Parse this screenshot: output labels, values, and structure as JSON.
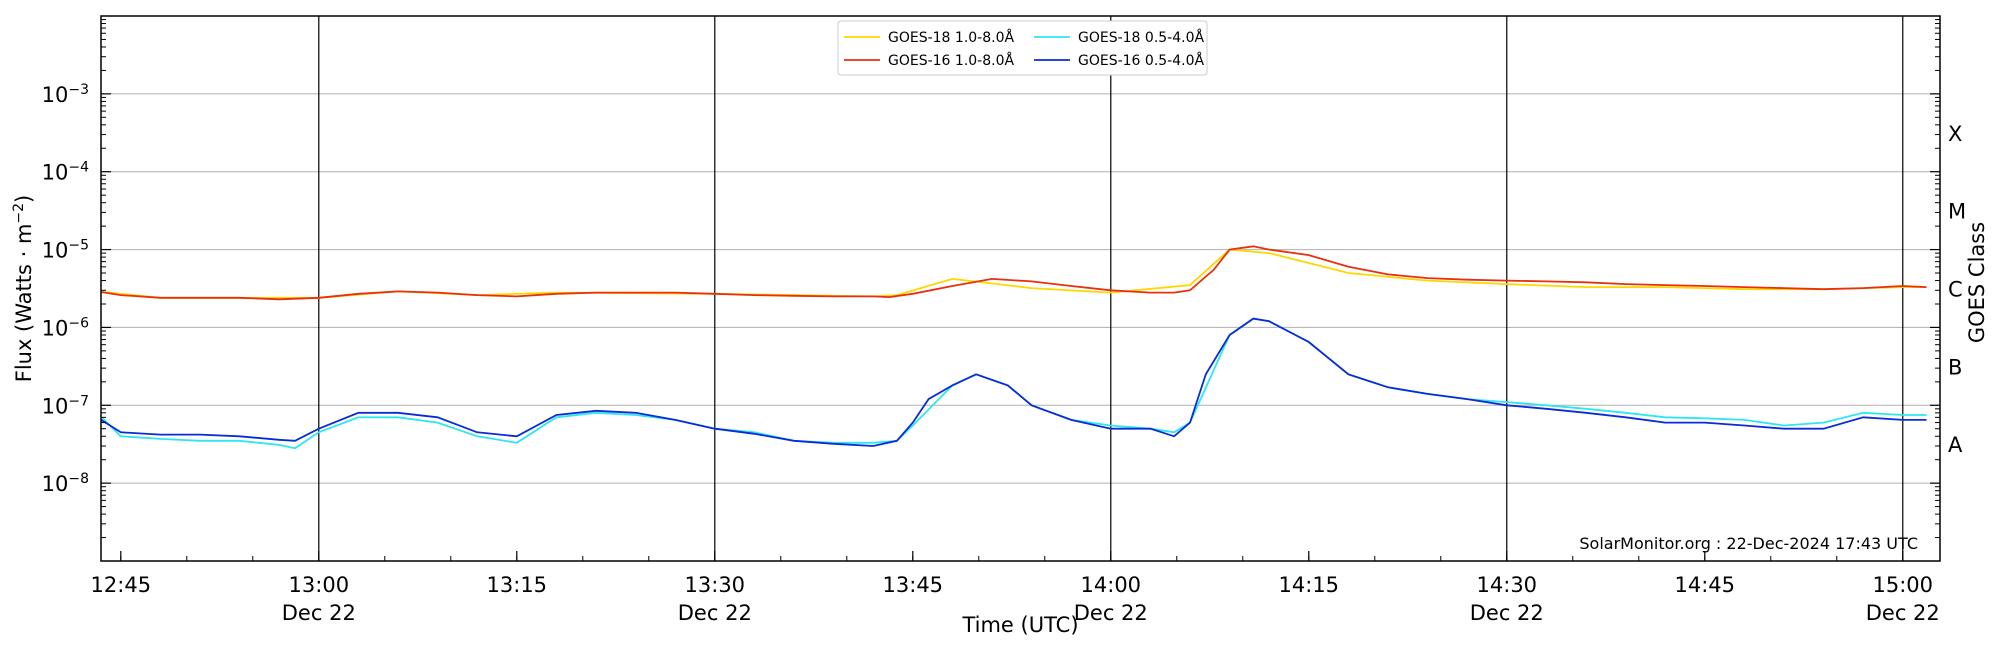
{
  "chart_data": {
    "type": "line",
    "xlabel": "Time (UTC)",
    "ylabel_main": "Flux (Watts · m",
    "ylabel_sup": "−2",
    "ylabel_close": ")",
    "right_axis_label": "GOES Class",
    "credit": "SolarMonitor.org : 22-Dec-2024 17:43 UTC",
    "x_range_minutes": [
      12.75,
      15.05
    ],
    "x_unit": "hours UTC on 22-Dec-2024",
    "ylim": [
      1e-09,
      0.01
    ],
    "y_scale": "log",
    "grid": "horizontal at decades, vertical lines at half hours",
    "legend_position": "top-center",
    "x_ticks": [
      {
        "value": 12.75,
        "line1": "12:45",
        "line2": ""
      },
      {
        "value": 13.0,
        "line1": "13:00",
        "line2": "Dec 22"
      },
      {
        "value": 13.25,
        "line1": "13:15",
        "line2": ""
      },
      {
        "value": 13.5,
        "line1": "13:30",
        "line2": "Dec 22"
      },
      {
        "value": 13.75,
        "line1": "13:45",
        "line2": ""
      },
      {
        "value": 14.0,
        "line1": "14:00",
        "line2": "Dec 22"
      },
      {
        "value": 14.25,
        "line1": "14:15",
        "line2": ""
      },
      {
        "value": 14.5,
        "line1": "14:30",
        "line2": "Dec 22"
      },
      {
        "value": 14.75,
        "line1": "14:45",
        "line2": ""
      },
      {
        "value": 15.0,
        "line1": "15:00",
        "line2": "Dec 22"
      }
    ],
    "vertical_lines": [
      13.0,
      13.5,
      14.0,
      14.5,
      15.0
    ],
    "y_ticks": [
      {
        "exp": -8,
        "base": "10",
        "sup": "−8"
      },
      {
        "exp": -7,
        "base": "10",
        "sup": "−7"
      },
      {
        "exp": -6,
        "base": "10",
        "sup": "−6"
      },
      {
        "exp": -5,
        "base": "10",
        "sup": "−5"
      },
      {
        "exp": -4,
        "base": "10",
        "sup": "−4"
      },
      {
        "exp": -3,
        "base": "10",
        "sup": "−3"
      }
    ],
    "goes_classes": [
      {
        "label": "A",
        "exp": -7.5
      },
      {
        "label": "B",
        "exp": -6.5
      },
      {
        "label": "C",
        "exp": -5.5
      },
      {
        "label": "M",
        "exp": -4.5
      },
      {
        "label": "X",
        "exp": -3.5
      }
    ],
    "series": [
      {
        "name": "GOES-18 1.0-8.0Å",
        "color": "#ffd700",
        "x": [
          12.72,
          12.8,
          13.0,
          13.1,
          13.2,
          13.3,
          13.5,
          13.7,
          13.73,
          13.8,
          13.9,
          14.0,
          14.1,
          14.15,
          14.2,
          14.3,
          14.4,
          14.5,
          14.6,
          14.7,
          14.8,
          14.9,
          15.0,
          15.03
        ],
        "values": [
          2.9e-06,
          2.4e-06,
          2.4e-06,
          2.9e-06,
          2.6e-06,
          2.8e-06,
          2.7e-06,
          2.5e-06,
          2.6e-06,
          4.2e-06,
          3.2e-06,
          2.8e-06,
          3.5e-06,
          1e-05,
          9e-06,
          5e-06,
          4e-06,
          3.6e-06,
          3.3e-06,
          3.3e-06,
          3.1e-06,
          3.1e-06,
          3.3e-06,
          3.3e-06
        ]
      },
      {
        "name": "GOES-16 1.0-8.0Å",
        "color": "#e8300e",
        "x": [
          12.72,
          12.75,
          12.8,
          12.85,
          12.9,
          12.95,
          13.0,
          13.05,
          13.1,
          13.15,
          13.2,
          13.25,
          13.3,
          13.35,
          13.4,
          13.45,
          13.5,
          13.55,
          13.6,
          13.65,
          13.7,
          13.72,
          13.75,
          13.8,
          13.85,
          13.9,
          13.95,
          14.0,
          14.05,
          14.08,
          14.1,
          14.13,
          14.15,
          14.18,
          14.2,
          14.25,
          14.3,
          14.35,
          14.4,
          14.45,
          14.5,
          14.55,
          14.6,
          14.65,
          14.7,
          14.75,
          14.8,
          14.85,
          14.9,
          14.95,
          15.0,
          15.03
        ],
        "values": [
          2.9e-06,
          2.6e-06,
          2.4e-06,
          2.4e-06,
          2.4e-06,
          2.3e-06,
          2.4e-06,
          2.7e-06,
          2.9e-06,
          2.8e-06,
          2.6e-06,
          2.5e-06,
          2.7e-06,
          2.8e-06,
          2.8e-06,
          2.8e-06,
          2.7e-06,
          2.6e-06,
          2.55e-06,
          2.5e-06,
          2.5e-06,
          2.45e-06,
          2.7e-06,
          3.4e-06,
          4.2e-06,
          3.9e-06,
          3.4e-06,
          3e-06,
          2.8e-06,
          2.8e-06,
          3e-06,
          5.5e-06,
          1e-05,
          1.1e-05,
          1e-05,
          8.5e-06,
          6e-06,
          4.8e-06,
          4.3e-06,
          4.1e-06,
          4e-06,
          3.9e-06,
          3.8e-06,
          3.6e-06,
          3.5e-06,
          3.4e-06,
          3.3e-06,
          3.2e-06,
          3.1e-06,
          3.2e-06,
          3.4e-06,
          3.3e-06
        ]
      },
      {
        "name": "GOES-18 0.5-4.0Å",
        "color": "#2ee6f0",
        "x": [
          12.72,
          12.75,
          12.8,
          12.85,
          12.9,
          12.95,
          12.97,
          13.0,
          13.05,
          13.1,
          13.15,
          13.2,
          13.25,
          13.3,
          13.35,
          13.4,
          13.45,
          13.5,
          13.55,
          13.6,
          13.65,
          13.7,
          13.73,
          13.75,
          13.8,
          13.83,
          13.87,
          13.9,
          13.95,
          14.0,
          14.05,
          14.08,
          14.1,
          14.15,
          14.18,
          14.2,
          14.25,
          14.3,
          14.35,
          14.4,
          14.45,
          14.5,
          14.55,
          14.6,
          14.65,
          14.7,
          14.75,
          14.8,
          14.85,
          14.9,
          14.95,
          15.0,
          15.03
        ],
        "values": [
          8e-08,
          4e-08,
          3.7e-08,
          3.5e-08,
          3.5e-08,
          3.1e-08,
          2.8e-08,
          4.5e-08,
          7e-08,
          7e-08,
          6e-08,
          4e-08,
          3.3e-08,
          7e-08,
          8e-08,
          7.5e-08,
          6.5e-08,
          5e-08,
          4.5e-08,
          3.5e-08,
          3.3e-08,
          3.3e-08,
          3.5e-08,
          5.5e-08,
          1.8e-07,
          2.5e-07,
          1.8e-07,
          1e-07,
          6.5e-08,
          5.5e-08,
          5e-08,
          4.5e-08,
          6e-08,
          8e-07,
          1.3e-06,
          1.2e-06,
          6.5e-07,
          2.5e-07,
          1.7e-07,
          1.4e-07,
          1.2e-07,
          1.1e-07,
          1e-07,
          9e-08,
          8e-08,
          7e-08,
          6.8e-08,
          6.5e-08,
          5.5e-08,
          6e-08,
          8e-08,
          7.5e-08,
          7.5e-08
        ]
      },
      {
        "name": "GOES-16 0.5-4.0Å",
        "color": "#0a2bd6",
        "x": [
          12.72,
          12.75,
          12.8,
          12.85,
          12.9,
          12.95,
          12.97,
          13.0,
          13.05,
          13.1,
          13.15,
          13.2,
          13.25,
          13.3,
          13.35,
          13.4,
          13.45,
          13.5,
          13.55,
          13.6,
          13.65,
          13.7,
          13.73,
          13.75,
          13.77,
          13.8,
          13.83,
          13.87,
          13.9,
          13.95,
          14.0,
          14.05,
          14.08,
          14.1,
          14.12,
          14.15,
          14.18,
          14.2,
          14.25,
          14.3,
          14.35,
          14.4,
          14.45,
          14.5,
          14.55,
          14.6,
          14.65,
          14.7,
          14.75,
          14.8,
          14.85,
          14.9,
          14.95,
          15.0,
          15.03
        ],
        "values": [
          7e-08,
          4.5e-08,
          4.2e-08,
          4.2e-08,
          4e-08,
          3.6e-08,
          3.5e-08,
          5e-08,
          8e-08,
          8e-08,
          7e-08,
          4.5e-08,
          4e-08,
          7.5e-08,
          8.5e-08,
          8e-08,
          6.5e-08,
          5e-08,
          4.3e-08,
          3.5e-08,
          3.2e-08,
          3e-08,
          3.5e-08,
          6e-08,
          1.2e-07,
          1.8e-07,
          2.5e-07,
          1.8e-07,
          1e-07,
          6.5e-08,
          5e-08,
          5e-08,
          4e-08,
          6e-08,
          2.5e-07,
          8e-07,
          1.3e-06,
          1.2e-06,
          6.5e-07,
          2.5e-07,
          1.7e-07,
          1.4e-07,
          1.2e-07,
          1e-07,
          9e-08,
          8e-08,
          7e-08,
          6e-08,
          6e-08,
          5.5e-08,
          5e-08,
          5e-08,
          7e-08,
          6.5e-08,
          6.5e-08
        ]
      }
    ]
  }
}
